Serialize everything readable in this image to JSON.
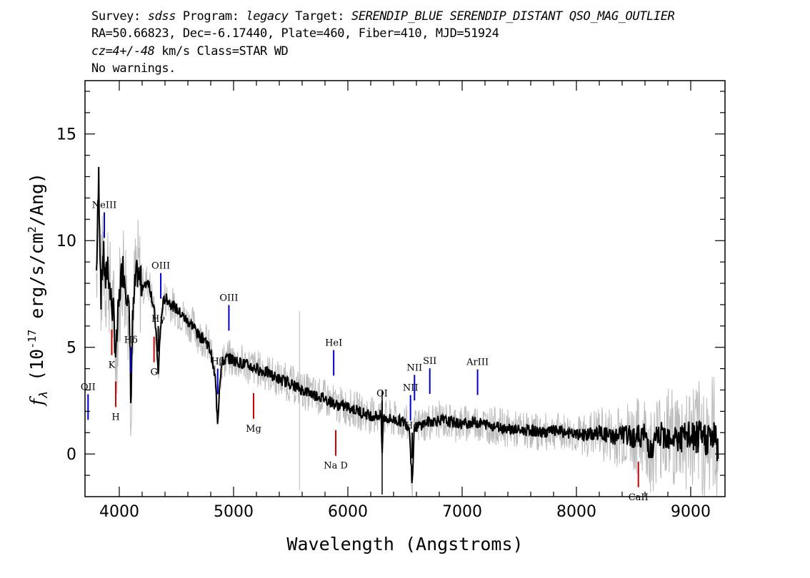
{
  "header": {
    "survey_label": "Survey:",
    "survey": "sdss",
    "program_label": "Program:",
    "program": "legacy",
    "target_label": "Target:",
    "target": "SERENDIP_BLUE SERENDIP_DISTANT QSO_MAG_OUTLIER",
    "line2": "RA=50.66823, Dec=-6.17440, Plate=460, Fiber=410, MJD=51924",
    "cz": "cz=4+/-48",
    "cz_rest": " km/s Class=STAR WD",
    "warnings": "No warnings."
  },
  "chart_data": {
    "type": "line",
    "xlabel": "Wavelength (Angstroms)",
    "ylabel": "f_λ (10^-17 erg/s/cm^2/Ang)",
    "xlim": [
      3700,
      9300
    ],
    "ylim": [
      -2,
      17.5
    ],
    "xticks": [
      4000,
      5000,
      6000,
      7000,
      8000,
      9000
    ],
    "yticks": [
      0,
      5,
      10,
      15
    ],
    "series": [
      {
        "color": "#000000",
        "points": [
          [
            3800,
            8.5
          ],
          [
            3820,
            13.0
          ],
          [
            3840,
            7.5
          ],
          [
            3860,
            9.5
          ],
          [
            3880,
            8.0
          ],
          [
            3900,
            9.0
          ],
          [
            3920,
            7.5
          ],
          [
            3950,
            6.5
          ],
          [
            3970,
            4.5
          ],
          [
            3990,
            6.5
          ],
          [
            4010,
            8.0
          ],
          [
            4030,
            8.8
          ],
          [
            4050,
            8.2
          ],
          [
            4070,
            7.5
          ],
          [
            4090,
            6.0
          ],
          [
            4102,
            2.5
          ],
          [
            4115,
            6.0
          ],
          [
            4140,
            8.0
          ],
          [
            4160,
            8.5
          ],
          [
            4190,
            8.0
          ],
          [
            4220,
            7.8
          ],
          [
            4250,
            8.2
          ],
          [
            4280,
            7.5
          ],
          [
            4310,
            6.5
          ],
          [
            4330,
            5.0
          ],
          [
            4341,
            3.5
          ],
          [
            4355,
            5.5
          ],
          [
            4380,
            7.0
          ],
          [
            4400,
            7.3
          ],
          [
            4430,
            7.2
          ],
          [
            4460,
            7.0
          ],
          [
            4500,
            6.8
          ],
          [
            4550,
            6.5
          ],
          [
            4600,
            6.2
          ],
          [
            4650,
            6.0
          ],
          [
            4700,
            5.5
          ],
          [
            4750,
            5.4
          ],
          [
            4800,
            4.8
          ],
          [
            4840,
            3.5
          ],
          [
            4861,
            1.5
          ],
          [
            4880,
            3.5
          ],
          [
            4900,
            4.3
          ],
          [
            4950,
            4.5
          ],
          [
            5000,
            4.4
          ],
          [
            5100,
            4.2
          ],
          [
            5200,
            4.0
          ],
          [
            5300,
            3.8
          ],
          [
            5400,
            3.5
          ],
          [
            5500,
            3.3
          ],
          [
            5600,
            3.0
          ],
          [
            5700,
            2.8
          ],
          [
            5800,
            2.6
          ],
          [
            5900,
            2.3
          ],
          [
            6000,
            2.2
          ],
          [
            6100,
            2.0
          ],
          [
            6200,
            1.8
          ],
          [
            6290,
            1.8
          ],
          [
            6300,
            0.0
          ],
          [
            6310,
            1.7
          ],
          [
            6400,
            1.6
          ],
          [
            6500,
            1.5
          ],
          [
            6540,
            1.2
          ],
          [
            6563,
            -1.5
          ],
          [
            6580,
            1.2
          ],
          [
            6650,
            1.4
          ],
          [
            6700,
            1.5
          ],
          [
            6800,
            1.6
          ],
          [
            6900,
            1.5
          ],
          [
            7000,
            1.4
          ],
          [
            7100,
            1.5
          ],
          [
            7200,
            1.4
          ],
          [
            7300,
            1.3
          ],
          [
            7400,
            1.2
          ],
          [
            7500,
            1.1
          ],
          [
            7600,
            1.1
          ],
          [
            7700,
            1.0
          ],
          [
            7800,
            1.1
          ],
          [
            7900,
            1.0
          ],
          [
            8000,
            0.9
          ],
          [
            8100,
            0.9
          ],
          [
            8200,
            1.0
          ],
          [
            8300,
            0.8
          ],
          [
            8400,
            0.9
          ],
          [
            8500,
            0.8
          ],
          [
            8600,
            0.9
          ],
          [
            8662,
            0.0
          ],
          [
            8700,
            0.8
          ],
          [
            8800,
            0.9
          ],
          [
            8900,
            0.7
          ],
          [
            9000,
            0.8
          ],
          [
            9100,
            0.7
          ],
          [
            9200,
            0.8
          ],
          [
            9240,
            0.3
          ]
        ]
      }
    ],
    "noise_band_color": "#bbbbbb",
    "emission_lines": [
      {
        "label": "OII",
        "wave": 3727,
        "color": "#0000cc"
      },
      {
        "label": "NeIII",
        "wave": 3869,
        "color": "#0000cc"
      },
      {
        "label": "Hδ",
        "wave": 4102,
        "color": "#0000cc"
      },
      {
        "label": "Hγ",
        "wave": 4341,
        "color": "#000000"
      },
      {
        "label": "OIII",
        "wave": 4363,
        "color": "#0000cc"
      },
      {
        "label": "Hβ",
        "wave": 4861,
        "color": "#0000cc"
      },
      {
        "label": "OIII",
        "wave": 4959,
        "color": "#0000cc"
      },
      {
        "label": "HeI",
        "wave": 5876,
        "color": "#0000cc"
      },
      {
        "label": "OI",
        "wave": 6300,
        "color": "#000000"
      },
      {
        "label": "NII",
        "wave": 6548,
        "color": "#0000cc"
      },
      {
        "label": "Hα",
        "wave": 6563,
        "color": "#000000"
      },
      {
        "label": "NII",
        "wave": 6583,
        "color": "#0000cc"
      },
      {
        "label": "SII",
        "wave": 6717,
        "color": "#0000cc"
      },
      {
        "label": "ArIII",
        "wave": 7135,
        "color": "#0000cc"
      }
    ],
    "absorption_lines": [
      {
        "label": "K",
        "wave": 3934,
        "color": "#cc0000"
      },
      {
        "label": "H",
        "wave": 3969,
        "color": "#cc0000"
      },
      {
        "label": "G",
        "wave": 4304,
        "color": "#cc0000"
      },
      {
        "label": "Mg",
        "wave": 5175,
        "color": "#cc0000"
      },
      {
        "label": "Na D",
        "wave": 5894,
        "color": "#cc0000"
      },
      {
        "label": "CaII",
        "wave": 8542,
        "color": "#cc0000"
      }
    ]
  }
}
